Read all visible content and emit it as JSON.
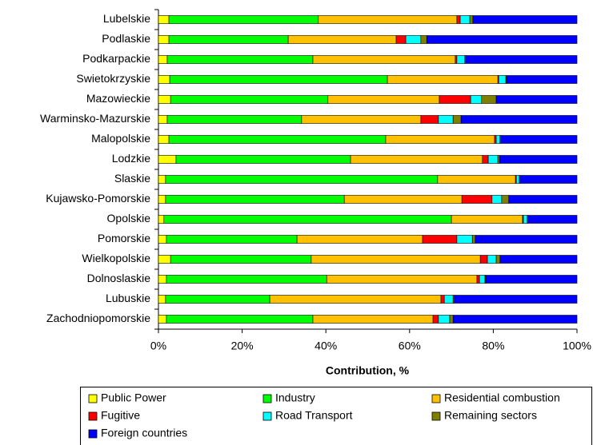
{
  "chart_data": {
    "type": "stacked-barh",
    "xlabel": "Contribution, %",
    "categories": [
      "Lubelskie",
      "Podlaskie",
      "Podkarpackie",
      "Swietokrzyskie",
      "Mazowieckie",
      "Warminsko-Mazurskie",
      "Malopolskie",
      "Lodzkie",
      "Slaskie",
      "Kujawsko-Pomorskie",
      "Opolskie",
      "Pomorskie",
      "Wielkopolskie",
      "Dolnoslaskie",
      "Lubuskie",
      "Zachodniopomorskie"
    ],
    "series": [
      {
        "name": "Public Power",
        "color": "#ffff00",
        "values": [
          2.5,
          2.5,
          2.1,
          2.7,
          2.9,
          2.1,
          2.5,
          4.2,
          1.7,
          1.7,
          1.3,
          1.9,
          2.9,
          1.9,
          1.7,
          1.9
        ]
      },
      {
        "name": "Industry",
        "color": "#00ff00",
        "values": [
          35.7,
          28.5,
          34.8,
          52.0,
          37.6,
          32.1,
          51.8,
          41.7,
          65.0,
          42.7,
          68.7,
          31.2,
          33.6,
          38.3,
          24.9,
          35.0
        ]
      },
      {
        "name": "Residential combustion",
        "color": "#ffc000",
        "values": [
          33.1,
          25.8,
          34.0,
          26.4,
          26.6,
          28.5,
          26.0,
          31.5,
          18.6,
          28.1,
          17.0,
          30.0,
          40.4,
          35.9,
          40.9,
          28.7
        ]
      },
      {
        "name": "Fugitive",
        "color": "#ff0000",
        "values": [
          0.8,
          2.3,
          0.4,
          0.2,
          7.5,
          4.2,
          0.4,
          1.4,
          0.2,
          7.2,
          0.2,
          8.2,
          1.7,
          0.6,
          0.8,
          1.3
        ]
      },
      {
        "name": "Road Transport",
        "color": "#00ffff",
        "values": [
          2.3,
          3.6,
          1.9,
          1.7,
          2.6,
          3.5,
          0.9,
          2.3,
          0.7,
          2.3,
          0.9,
          3.7,
          2.1,
          1.3,
          2.1,
          2.7
        ]
      },
      {
        "name": "Remaining sectors",
        "color": "#808000",
        "values": [
          0.7,
          1.4,
          0.2,
          0.2,
          3.5,
          1.9,
          0.2,
          0.4,
          0.2,
          1.7,
          0.2,
          0.7,
          0.9,
          0.2,
          0.3,
          0.8
        ]
      },
      {
        "name": "Foreign countries",
        "color": "#0000ff",
        "values": [
          24.9,
          35.9,
          26.6,
          16.8,
          19.3,
          27.7,
          18.2,
          18.5,
          13.6,
          16.3,
          11.7,
          24.3,
          18.4,
          21.8,
          29.3,
          29.6
        ]
      }
    ],
    "xlim": [
      0,
      100
    ],
    "xticks": [
      {
        "value": 0,
        "label": "0%"
      },
      {
        "value": 20,
        "label": "20%"
      },
      {
        "value": 40,
        "label": "40%"
      },
      {
        "value": 60,
        "label": "60%"
      },
      {
        "value": 80,
        "label": "80%"
      },
      {
        "value": 100,
        "label": "100%"
      }
    ],
    "legend": "bottom"
  }
}
